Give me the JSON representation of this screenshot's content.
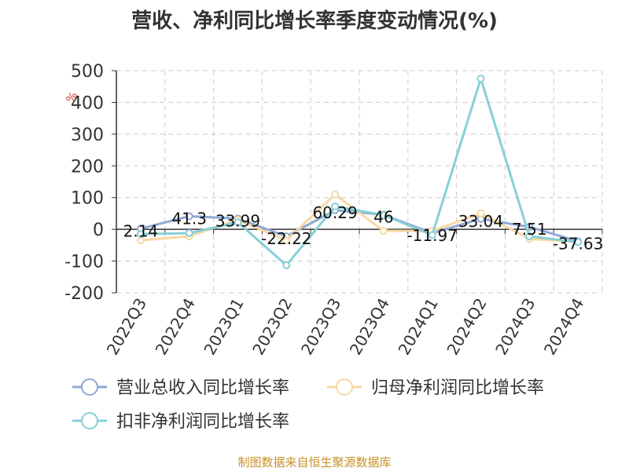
{
  "chart_data": {
    "type": "line",
    "title": "营收、净利同比增长率季度变动情况(%)",
    "ylabel": "%",
    "xlabel": "",
    "ylim": [
      -200,
      500
    ],
    "yticks": [
      500,
      400,
      300,
      200,
      100,
      0,
      -100,
      -200
    ],
    "grid": true,
    "legend_position": "bottom",
    "categories": [
      "2022Q3",
      "2022Q4",
      "2023Q1",
      "2023Q2",
      "2023Q3",
      "2023Q4",
      "2024Q1",
      "2024Q2",
      "2024Q3",
      "2024Q4"
    ],
    "series": [
      {
        "name": "营业总收入同比增长率",
        "color": "#8fa9d4",
        "values": [
          2.14,
          41.3,
          33.99,
          -22.22,
          60.29,
          46,
          -11.97,
          33.04,
          7.51,
          -37.63
        ],
        "labels": [
          "2.14",
          "41.3",
          "33.99",
          "-22.22",
          "60.29",
          "46",
          "-11.97",
          "33.04",
          "7.51",
          "-37.63"
        ]
      },
      {
        "name": "归母净利润同比增长率",
        "color": "#f7d9a3",
        "values": [
          -35,
          -22,
          30,
          -35,
          110,
          -5,
          -5,
          50,
          -30,
          -40
        ]
      },
      {
        "name": "扣非净利润同比增长率",
        "color": "#86d0d6",
        "values": [
          -15,
          -12,
          22,
          -113,
          72,
          45,
          -18,
          475,
          -22,
          -40
        ]
      }
    ]
  },
  "footer": "制图数据来自恒生聚源数据库"
}
